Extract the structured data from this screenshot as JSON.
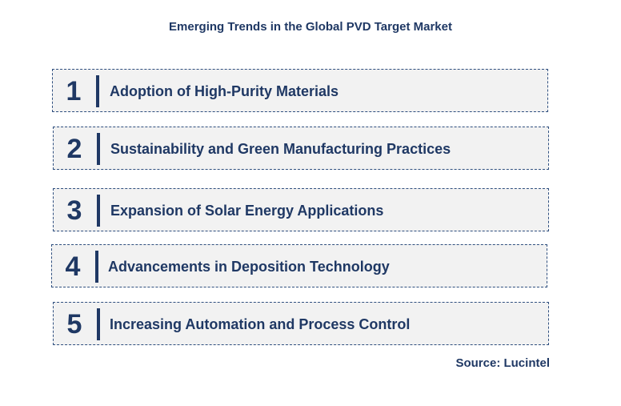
{
  "title": "Emerging Trends in the Global PVD Target Market",
  "trends": [
    {
      "number": "1",
      "label": "Adoption of High-Purity Materials"
    },
    {
      "number": "2",
      "label": "Sustainability and Green Manufacturing Practices"
    },
    {
      "number": "3",
      "label": "Expansion of Solar Energy Applications"
    },
    {
      "number": "4",
      "label": "Advancements in Deposition Technology"
    },
    {
      "number": "5",
      "label": "Increasing Automation and Process Control"
    }
  ],
  "source": "Source: Lucintel",
  "colors": {
    "text": "#1f3864",
    "box_background": "#f2f2f2",
    "border": "#2f4f7f"
  }
}
